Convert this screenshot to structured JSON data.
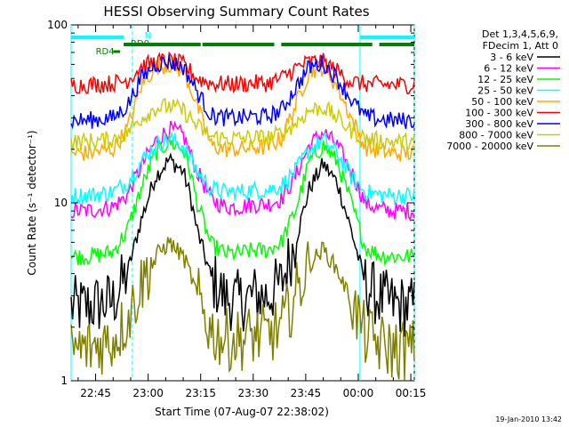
{
  "chart_data": {
    "type": "line",
    "title": "HESSI Observing Summary Count Rates",
    "xlabel": "Start Time (07-Aug-07 22:38:02)",
    "ylabel": "Count Rate (s⁻¹ detector⁻¹)",
    "y_scale": "log",
    "ylim": [
      1,
      100
    ],
    "xlim_minutes": [
      0,
      98
    ],
    "x_ticks": [
      "22:45",
      "23:00",
      "23:15",
      "23:30",
      "23:45",
      "00:00",
      "00:15"
    ],
    "y_ticks": [
      "1",
      "10",
      "100"
    ],
    "legend_header": [
      "Det 1,3,4,5,6,9,",
      "FDecim 1, Att 0"
    ],
    "grid": false,
    "legend_position": "right",
    "timestamp": "19-Jan-2010 13:42",
    "x": [
      0,
      4,
      8,
      12,
      16,
      20,
      24,
      28,
      32,
      34,
      36,
      40,
      44,
      48,
      52,
      56,
      60,
      64,
      68,
      72,
      76,
      80,
      84,
      88,
      92,
      96
    ],
    "series": [
      {
        "name": "3 - 6 keV",
        "color": "#000000",
        "values": [
          2.6,
          2.6,
          2.7,
          2.8,
          4.0,
          8.0,
          14.0,
          17.5,
          15.0,
          11.0,
          7.0,
          3.8,
          2.9,
          2.8,
          3.0,
          3.0,
          3.5,
          6.0,
          12.0,
          16.5,
          13.0,
          7.0,
          3.5,
          2.9,
          2.7,
          2.6
        ]
      },
      {
        "name": "6 - 12 keV",
        "color": "#ff00ff",
        "values": [
          9.0,
          9.0,
          9.2,
          9.5,
          11.0,
          16.0,
          22.0,
          26.0,
          24.0,
          19.0,
          15.0,
          10.5,
          9.5,
          9.5,
          9.8,
          9.8,
          10.5,
          14.0,
          21.0,
          25.0,
          21.0,
          15.0,
          10.0,
          9.2,
          9.0,
          9.0
        ]
      },
      {
        "name": "12 - 25 keV",
        "color": "#00ff00",
        "values": [
          5.0,
          5.0,
          5.1,
          5.3,
          7.0,
          12.0,
          19.0,
          22.0,
          20.0,
          15.0,
          10.0,
          5.8,
          5.2,
          5.2,
          5.4,
          5.4,
          6.0,
          9.0,
          17.0,
          21.0,
          17.0,
          10.0,
          5.6,
          5.1,
          5.0,
          5.0
        ]
      },
      {
        "name": "25 - 50 keV",
        "color": "#00ffff",
        "values": [
          11.0,
          11.0,
          11.2,
          11.5,
          13.0,
          17.0,
          21.0,
          23.0,
          21.0,
          18.0,
          15.0,
          12.0,
          11.5,
          11.5,
          11.8,
          11.8,
          12.5,
          15.0,
          20.0,
          22.5,
          19.0,
          14.0,
          11.5,
          11.1,
          11.0,
          11.0
        ]
      },
      {
        "name": "50 - 100 keV",
        "color": "#ffaa00",
        "values": [
          19.0,
          19.0,
          19.5,
          20.0,
          26.0,
          45.0,
          58.0,
          60.0,
          55.0,
          45.0,
          35.0,
          21.0,
          20.0,
          20.0,
          20.5,
          20.5,
          23.0,
          35.0,
          55.0,
          58.0,
          45.0,
          30.0,
          20.5,
          19.5,
          19.0,
          19.0
        ]
      },
      {
        "name": "100 - 300 keV",
        "color": "#ff0000",
        "values": [
          46.0,
          46.0,
          46.5,
          47.0,
          49.0,
          58.0,
          62.0,
          63.0,
          60.0,
          55.0,
          50.0,
          47.0,
          46.5,
          46.5,
          47.0,
          47.0,
          50.0,
          57.0,
          62.0,
          62.0,
          55.0,
          48.0,
          46.5,
          46.2,
          46.0,
          46.0
        ]
      },
      {
        "name": "300 - 800 keV",
        "color": "#0000ff",
        "values": [
          29.0,
          29.0,
          29.5,
          30.0,
          35.0,
          50.0,
          60.0,
          62.0,
          58.0,
          50.0,
          42.0,
          31.0,
          30.0,
          30.0,
          30.5,
          30.5,
          33.0,
          44.0,
          58.0,
          61.0,
          50.0,
          38.0,
          30.5,
          29.5,
          29.0,
          29.0
        ]
      },
      {
        "name": "800 - 7000 keV",
        "color": "#cccc00",
        "values": [
          22.0,
          22.0,
          22.3,
          22.8,
          25.0,
          30.0,
          34.0,
          35.0,
          33.0,
          30.0,
          27.0,
          23.5,
          23.0,
          23.0,
          23.2,
          23.2,
          24.5,
          28.0,
          33.0,
          34.5,
          30.0,
          25.5,
          23.0,
          22.3,
          22.0,
          22.0
        ]
      },
      {
        "name": "7000 - 20000 keV",
        "color": "#808000",
        "values": [
          1.5,
          1.5,
          1.6,
          1.7,
          2.2,
          3.5,
          5.0,
          6.0,
          5.0,
          4.0,
          3.0,
          1.9,
          1.7,
          1.7,
          1.8,
          1.8,
          2.0,
          3.0,
          4.5,
          5.5,
          4.2,
          2.8,
          1.8,
          1.6,
          1.5,
          1.5
        ]
      }
    ],
    "flag_bars": [
      {
        "label": "N",
        "color": "#00ffff",
        "intervals": [
          [
            0,
            15
          ],
          [
            82.5,
            98
          ]
        ]
      },
      {
        "label": "RD0",
        "color": "#008000",
        "intervals": [
          [
            15,
            37
          ],
          [
            37.5,
            58
          ],
          [
            60,
            86
          ],
          [
            88,
            98
          ]
        ]
      },
      {
        "label": "RD4",
        "color": "#008000",
        "intervals": [
          [
            12,
            14
          ]
        ]
      }
    ],
    "vertical_markers": [
      {
        "type": "solid",
        "color": "#00ffff",
        "x": [
          0,
          82.5
        ]
      },
      {
        "type": "dashed",
        "color": "#00ffff",
        "x": [
          17.5,
          98
        ]
      }
    ]
  }
}
